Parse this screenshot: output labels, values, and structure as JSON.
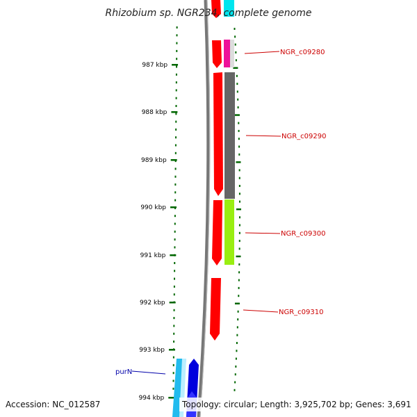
{
  "title": "Rhizobium sp. NGR234, complete genome",
  "footer": {
    "accession": "Accession: NC_012587",
    "summary": "Topology: circular; Length: 3,925,702 bp; Genes: 3,691"
  },
  "ticks": [
    {
      "label": "987 kbp"
    },
    {
      "label": "988 kbp"
    },
    {
      "label": "989 kbp"
    },
    {
      "label": "990 kbp"
    },
    {
      "label": "991 kbp"
    },
    {
      "label": "992 kbp"
    },
    {
      "label": "993 kbp"
    },
    {
      "label": "994 kbp"
    }
  ],
  "gene_labels": [
    {
      "name": "NGR_c09280",
      "color": "#cc0000"
    },
    {
      "name": "NGR_c09290",
      "color": "#cc0000"
    },
    {
      "name": "NGR_c09300",
      "color": "#cc0000"
    },
    {
      "name": "NGR_c09310",
      "color": "#cc0000"
    },
    {
      "name": "purN",
      "color": "#0000aa"
    }
  ],
  "colors": {
    "cds": "#ff0000",
    "gene_cyan": "#00e5ee",
    "gene_magenta": "#ee1199",
    "gene_gray": "#666666",
    "gene_lime": "#99ee11",
    "gene_sky": "#22bbee",
    "gene_blue": "#0000dd",
    "backbone": "#777777",
    "tick": "#006600"
  }
}
